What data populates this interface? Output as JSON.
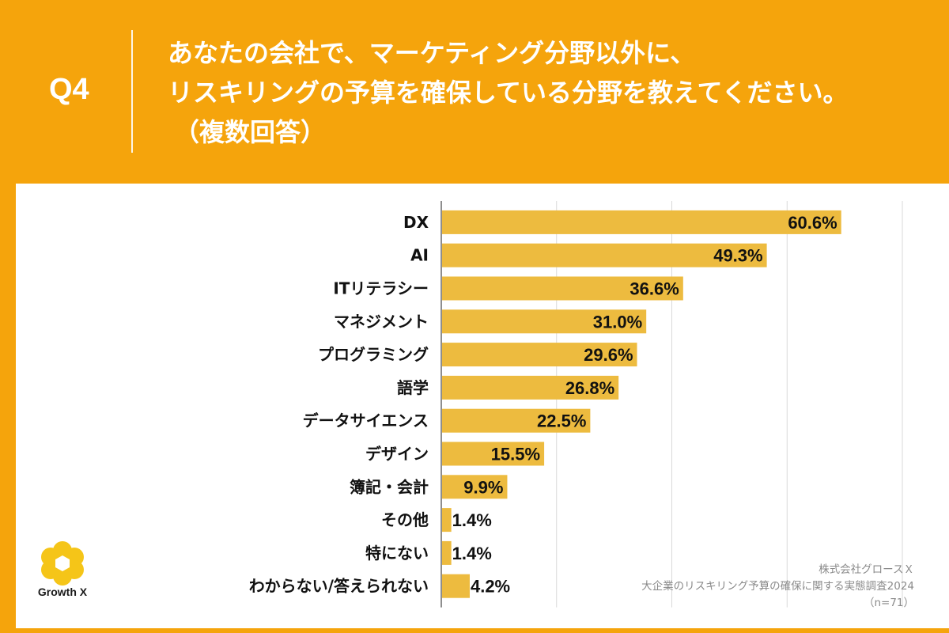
{
  "header": {
    "question_number": "Q4",
    "title_line1": "あなたの会社で、マーケティング分野以外に、",
    "title_line2": "リスキリングの予算を確保している分野を教えてください。",
    "title_line3": "（複数回答）"
  },
  "chart_data": {
    "type": "bar",
    "orientation": "horizontal",
    "categories": [
      "DX",
      "AI",
      "ITリテラシー",
      "マネジメント",
      "プログラミング",
      "語学",
      "データサイエンス",
      "デザイン",
      "簿記・会計",
      "その他",
      "特にない",
      "わからない/答えられない"
    ],
    "values": [
      60.6,
      49.3,
      36.6,
      31.0,
      29.6,
      26.8,
      22.5,
      15.5,
      9.9,
      1.4,
      1.4,
      4.2
    ],
    "value_labels": [
      "60.6%",
      "49.3%",
      "36.6%",
      "31.0%",
      "29.6%",
      "26.8%",
      "22.5%",
      "15.5%",
      "9.9%",
      "1.4%",
      "1.4%",
      "4.2%"
    ],
    "xlim": [
      0,
      70
    ],
    "gridlines": [
      0,
      17.5,
      35,
      52.5,
      70
    ],
    "grid": true,
    "bar_color": "#EDBB3F"
  },
  "brand": {
    "logo_text": "Growth X",
    "logo_color": "#F5C518"
  },
  "source": {
    "company": "株式会社グロースＸ",
    "survey": "大企業のリスキリング予算の確保に関する実態調査2024",
    "sample": "（n=71）"
  }
}
